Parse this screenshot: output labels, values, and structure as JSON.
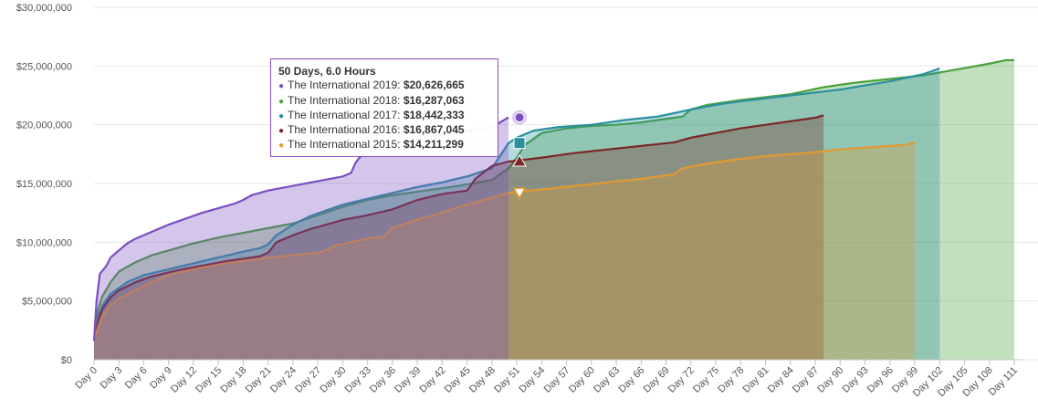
{
  "chart_data": {
    "type": "area",
    "title": "",
    "xlabel": "",
    "ylabel": "",
    "ylim": [
      0,
      30000000
    ],
    "yticks": [
      "$0",
      "$5,000,000",
      "$10,000,000",
      "$15,000,000",
      "$20,000,000",
      "$25,000,000",
      "$30,000,000"
    ],
    "xlim": [
      0,
      111
    ],
    "xticks": [
      "Day 0",
      "Day 3",
      "Day 6",
      "Day 9",
      "Day 12",
      "Day 15",
      "Day 18",
      "Day 21",
      "Day 24",
      "Day 27",
      "Day 30",
      "Day 33",
      "Day 36",
      "Day 39",
      "Day 42",
      "Day 45",
      "Day 48",
      "Day 51",
      "Day 54",
      "Day 57",
      "Day 60",
      "Day 63",
      "Day 66",
      "Day 69",
      "Day 72",
      "Day 75",
      "Day 78",
      "Day 81",
      "Day 84",
      "Day 87",
      "Day 90",
      "Day 93",
      "Day 96",
      "Day 99",
      "Day 102",
      "Day 105",
      "Day 108",
      "Day 111"
    ],
    "grid": true,
    "legend": "none",
    "series": [
      {
        "name": "The International 2018",
        "color": "#4aa23a",
        "marker": "none",
        "points": [
          [
            0,
            1600000
          ],
          [
            0.5,
            4300000
          ],
          [
            1,
            5400000
          ],
          [
            2,
            6600000
          ],
          [
            3,
            7500000
          ],
          [
            5,
            8300000
          ],
          [
            7,
            8900000
          ],
          [
            9,
            9300000
          ],
          [
            12,
            9900000
          ],
          [
            15,
            10400000
          ],
          [
            18,
            10800000
          ],
          [
            21,
            11200000
          ],
          [
            24,
            11600000
          ],
          [
            27,
            12300000
          ],
          [
            30,
            13000000
          ],
          [
            33,
            13600000
          ],
          [
            36,
            14000000
          ],
          [
            40,
            14400000
          ],
          [
            44,
            14800000
          ],
          [
            48,
            15300000
          ],
          [
            50,
            16287063
          ],
          [
            51,
            17200000
          ],
          [
            52,
            18300000
          ],
          [
            54,
            19300000
          ],
          [
            57,
            19700000
          ],
          [
            60,
            19900000
          ],
          [
            63,
            20000000
          ],
          [
            66,
            20200000
          ],
          [
            69,
            20500000
          ],
          [
            71,
            20700000
          ],
          [
            72,
            21300000
          ],
          [
            74,
            21700000
          ],
          [
            78,
            22100000
          ],
          [
            84,
            22600000
          ],
          [
            88,
            23200000
          ],
          [
            92,
            23600000
          ],
          [
            96,
            23900000
          ],
          [
            100,
            24200000
          ],
          [
            104,
            24700000
          ],
          [
            108,
            25200000
          ],
          [
            110,
            25500000
          ],
          [
            111,
            25500000
          ]
        ]
      },
      {
        "name": "The International 2017",
        "color": "#2a8fa0",
        "marker": "square",
        "points": [
          [
            0,
            1600000
          ],
          [
            0.5,
            3600000
          ],
          [
            1,
            4600000
          ],
          [
            2,
            5600000
          ],
          [
            4,
            6600000
          ],
          [
            6,
            7200000
          ],
          [
            9,
            7700000
          ],
          [
            12,
            8200000
          ],
          [
            15,
            8700000
          ],
          [
            18,
            9200000
          ],
          [
            20,
            9500000
          ],
          [
            21,
            9800000
          ],
          [
            22,
            10600000
          ],
          [
            24,
            11500000
          ],
          [
            26,
            12200000
          ],
          [
            28,
            12700000
          ],
          [
            30,
            13200000
          ],
          [
            33,
            13700000
          ],
          [
            36,
            14200000
          ],
          [
            39,
            14700000
          ],
          [
            42,
            15100000
          ],
          [
            45,
            15600000
          ],
          [
            48,
            16300000
          ],
          [
            50,
            18442333
          ],
          [
            51,
            18900000
          ],
          [
            53,
            19500000
          ],
          [
            56,
            19800000
          ],
          [
            60,
            20000000
          ],
          [
            64,
            20400000
          ],
          [
            68,
            20700000
          ],
          [
            72,
            21300000
          ],
          [
            75,
            21700000
          ],
          [
            78,
            22000000
          ],
          [
            84,
            22500000
          ],
          [
            90,
            23000000
          ],
          [
            96,
            23700000
          ],
          [
            100,
            24300000
          ],
          [
            102,
            24800000
          ]
        ]
      },
      {
        "name": "The International 2016",
        "color": "#7a2626",
        "marker": "triangle",
        "points": [
          [
            0,
            1600000
          ],
          [
            0.5,
            3300000
          ],
          [
            1,
            4300000
          ],
          [
            2,
            5300000
          ],
          [
            3,
            5900000
          ],
          [
            5,
            6600000
          ],
          [
            7,
            7100000
          ],
          [
            10,
            7600000
          ],
          [
            13,
            8000000
          ],
          [
            16,
            8400000
          ],
          [
            19,
            8700000
          ],
          [
            20,
            8800000
          ],
          [
            21,
            9100000
          ],
          [
            22,
            10000000
          ],
          [
            24,
            10600000
          ],
          [
            26,
            11100000
          ],
          [
            28,
            11500000
          ],
          [
            30,
            11900000
          ],
          [
            33,
            12300000
          ],
          [
            36,
            12800000
          ],
          [
            39,
            13600000
          ],
          [
            42,
            14100000
          ],
          [
            45,
            14400000
          ],
          [
            46,
            15400000
          ],
          [
            48,
            16500000
          ],
          [
            50,
            16867045
          ],
          [
            54,
            17200000
          ],
          [
            58,
            17600000
          ],
          [
            62,
            17900000
          ],
          [
            66,
            18200000
          ],
          [
            70,
            18500000
          ],
          [
            72,
            18900000
          ],
          [
            75,
            19300000
          ],
          [
            78,
            19700000
          ],
          [
            81,
            20000000
          ],
          [
            84,
            20300000
          ],
          [
            87,
            20600000
          ],
          [
            88,
            20800000
          ]
        ]
      },
      {
        "name": "The International 2015",
        "color": "#e09a30",
        "marker": "triangle-down",
        "points": [
          [
            0,
            1600000
          ],
          [
            0.5,
            2800000
          ],
          [
            1,
            3700000
          ],
          [
            2,
            4600000
          ],
          [
            3,
            5200000
          ],
          [
            5,
            5900000
          ],
          [
            7,
            6600000
          ],
          [
            9,
            7200000
          ],
          [
            12,
            7700000
          ],
          [
            15,
            8100000
          ],
          [
            18,
            8400000
          ],
          [
            21,
            8700000
          ],
          [
            24,
            8900000
          ],
          [
            27,
            9100000
          ],
          [
            28,
            9300000
          ],
          [
            29,
            9700000
          ],
          [
            31,
            10000000
          ],
          [
            33,
            10300000
          ],
          [
            35,
            10500000
          ],
          [
            36,
            11200000
          ],
          [
            38,
            11700000
          ],
          [
            41,
            12300000
          ],
          [
            44,
            13000000
          ],
          [
            48,
            13800000
          ],
          [
            50,
            14211299
          ],
          [
            54,
            14500000
          ],
          [
            58,
            14800000
          ],
          [
            62,
            15100000
          ],
          [
            66,
            15400000
          ],
          [
            70,
            15800000
          ],
          [
            71,
            16300000
          ],
          [
            74,
            16700000
          ],
          [
            78,
            17100000
          ],
          [
            82,
            17400000
          ],
          [
            86,
            17600000
          ],
          [
            90,
            17900000
          ],
          [
            94,
            18100000
          ],
          [
            98,
            18300000
          ],
          [
            99,
            18500000
          ]
        ]
      },
      {
        "name": "The International 2019",
        "color": "#7b4fc2",
        "marker": "circle",
        "points": [
          [
            0,
            1600000
          ],
          [
            0.3,
            5000000
          ],
          [
            0.7,
            7300000
          ],
          [
            1.5,
            8000000
          ],
          [
            2,
            8700000
          ],
          [
            3,
            9300000
          ],
          [
            4,
            9900000
          ],
          [
            5,
            10300000
          ],
          [
            7,
            10900000
          ],
          [
            9,
            11500000
          ],
          [
            11,
            12000000
          ],
          [
            13,
            12500000
          ],
          [
            15,
            12900000
          ],
          [
            17,
            13300000
          ],
          [
            18,
            13600000
          ],
          [
            19,
            14000000
          ],
          [
            21,
            14400000
          ],
          [
            24,
            14800000
          ],
          [
            27,
            15200000
          ],
          [
            30,
            15600000
          ],
          [
            31,
            15900000
          ],
          [
            31.5,
            16700000
          ],
          [
            32,
            17200000
          ],
          [
            33,
            17700000
          ],
          [
            36,
            18300000
          ],
          [
            39,
            18800000
          ],
          [
            42,
            19200000
          ],
          [
            45,
            19500000
          ],
          [
            48,
            19800000
          ],
          [
            50,
            20626665
          ]
        ]
      }
    ]
  },
  "tooltip": {
    "title": "50 Days, 6.0 Hours",
    "rows": [
      {
        "label": "The International 2019:",
        "value": "$20,626,665",
        "color": "#7b4fc2"
      },
      {
        "label": "The International 2018:",
        "value": "$16,287,063",
        "color": "#4aa23a"
      },
      {
        "label": "The International 2017:",
        "value": "$18,442,333",
        "color": "#2a8fa0"
      },
      {
        "label": "The International 2016:",
        "value": "$16,867,045",
        "color": "#7a2626"
      },
      {
        "label": "The International 2015:",
        "value": "$14,211,299",
        "color": "#e09a30"
      }
    ]
  }
}
